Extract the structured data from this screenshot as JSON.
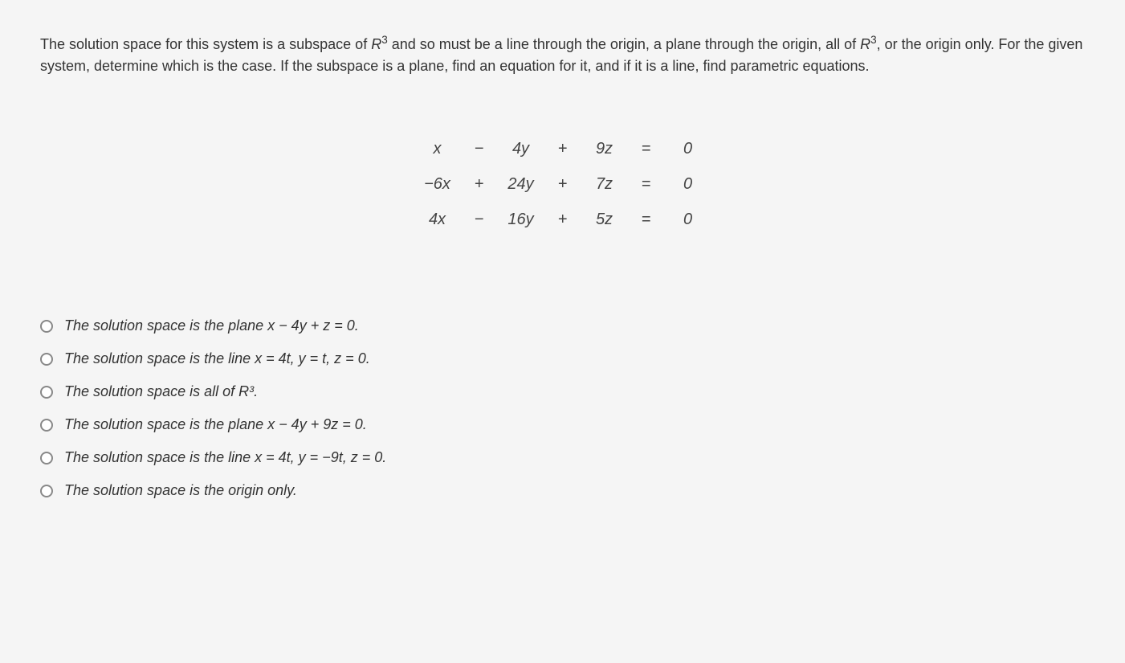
{
  "question": {
    "prefix": "The solution space for this system is a subspace of ",
    "r3_a": "R",
    "sup_a": "3",
    "mid1": " and so must be a line through the origin, a plane through the origin, all of ",
    "r3_b": "R",
    "sup_b": "3",
    "mid2": ", or the origin only. For the given system, determine which is the case. If the subspace is a plane, find an equation for it, and if it is a line, find parametric equations."
  },
  "equations": {
    "rows": [
      {
        "c1": "x",
        "s1": "−",
        "c2": "4y",
        "s2": "+",
        "c3": "9z",
        "eq": "=",
        "r": "0"
      },
      {
        "c1": "−6x",
        "s1": "+",
        "c2": "24y",
        "s2": "+",
        "c3": "7z",
        "eq": "=",
        "r": "0"
      },
      {
        "c1": "4x",
        "s1": "−",
        "c2": "16y",
        "s2": "+",
        "c3": "5z",
        "eq": "=",
        "r": "0"
      }
    ]
  },
  "options": [
    {
      "pre": "The solution space is the plane ",
      "math": "x − 4y + z = 0",
      "post": "."
    },
    {
      "pre": "The solution space is the line ",
      "math": "x = 4t, y = t, z = 0",
      "post": "."
    },
    {
      "pre": "The solution space is all of ",
      "math": "R³",
      "post": "."
    },
    {
      "pre": "The solution space is the plane ",
      "math": "x − 4y + 9z = 0",
      "post": "."
    },
    {
      "pre": "The solution space is the line ",
      "math": "x = 4t, y = −9t, z = 0",
      "post": "."
    },
    {
      "pre": "The solution space is the origin only.",
      "math": "",
      "post": ""
    }
  ],
  "colors": {
    "background": "#f5f5f5",
    "text": "#333333",
    "radio_border": "#888888"
  },
  "typography": {
    "body_fontsize": 18,
    "equation_fontsize": 20
  }
}
